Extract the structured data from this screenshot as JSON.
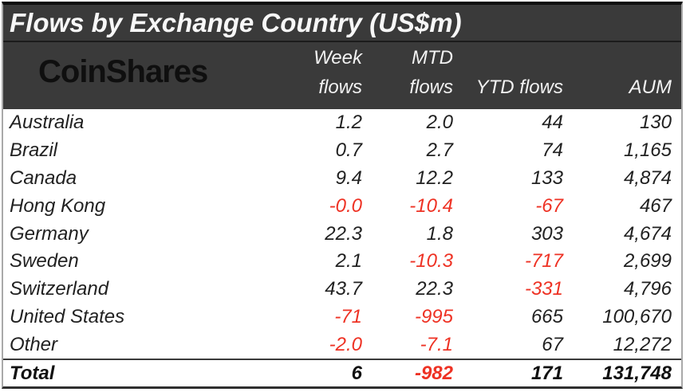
{
  "table": {
    "title": "Flows by Exchange Country (US$m)",
    "logo_text": "CoinShares",
    "columns": [
      {
        "line1": "Week",
        "line2": "flows"
      },
      {
        "line1": "MTD",
        "line2": "flows"
      },
      {
        "line1": "",
        "line2": "YTD flows"
      },
      {
        "line1": "",
        "line2": "AUM"
      }
    ],
    "rows": [
      {
        "country": "Australia",
        "week": "1.2",
        "mtd": "2.0",
        "ytd": "44",
        "aum": "130"
      },
      {
        "country": "Brazil",
        "week": "0.7",
        "mtd": "2.7",
        "ytd": "74",
        "aum": "1,165"
      },
      {
        "country": "Canada",
        "week": "9.4",
        "mtd": "12.2",
        "ytd": "133",
        "aum": "4,874"
      },
      {
        "country": "Hong Kong",
        "week": "-0.0",
        "mtd": "-10.4",
        "ytd": "-67",
        "aum": "467"
      },
      {
        "country": "Germany",
        "week": "22.3",
        "mtd": "1.8",
        "ytd": "303",
        "aum": "4,674"
      },
      {
        "country": "Sweden",
        "week": "2.1",
        "mtd": "-10.3",
        "ytd": "-717",
        "aum": "2,699"
      },
      {
        "country": "Switzerland",
        "week": "43.7",
        "mtd": "22.3",
        "ytd": "-331",
        "aum": "4,796"
      },
      {
        "country": "United States",
        "week": "-71",
        "mtd": "-995",
        "ytd": "665",
        "aum": "100,670"
      },
      {
        "country": "Other",
        "week": "-2.0",
        "mtd": "-7.1",
        "ytd": "67",
        "aum": "12,272"
      }
    ],
    "total": {
      "country": "Total",
      "week": "6",
      "mtd": "-982",
      "ytd": "171",
      "aum": "131,748"
    },
    "colors": {
      "header_bg": "#3a3a3a",
      "negative": "#ee3224"
    }
  },
  "chart_data": {
    "type": "table",
    "title": "Flows by Exchange Country (US$m)",
    "categories": [
      "Australia",
      "Brazil",
      "Canada",
      "Hong Kong",
      "Germany",
      "Sweden",
      "Switzerland",
      "United States",
      "Other",
      "Total"
    ],
    "series": [
      {
        "name": "Week flows",
        "values": [
          1.2,
          0.7,
          9.4,
          -0.0,
          22.3,
          2.1,
          43.7,
          -71,
          -2.0,
          6
        ]
      },
      {
        "name": "MTD flows",
        "values": [
          2.0,
          2.7,
          12.2,
          -10.4,
          1.8,
          -10.3,
          22.3,
          -995,
          -7.1,
          -982
        ]
      },
      {
        "name": "YTD flows",
        "values": [
          44,
          74,
          133,
          -67,
          303,
          -717,
          -331,
          665,
          67,
          171
        ]
      },
      {
        "name": "AUM",
        "values": [
          130,
          1165,
          4874,
          467,
          4674,
          2699,
          4796,
          100670,
          12272,
          131748
        ]
      }
    ],
    "layout_hints": {
      "negative_values_in_red": true,
      "numbers_right_aligned": true,
      "header_dark_band": true
    }
  }
}
